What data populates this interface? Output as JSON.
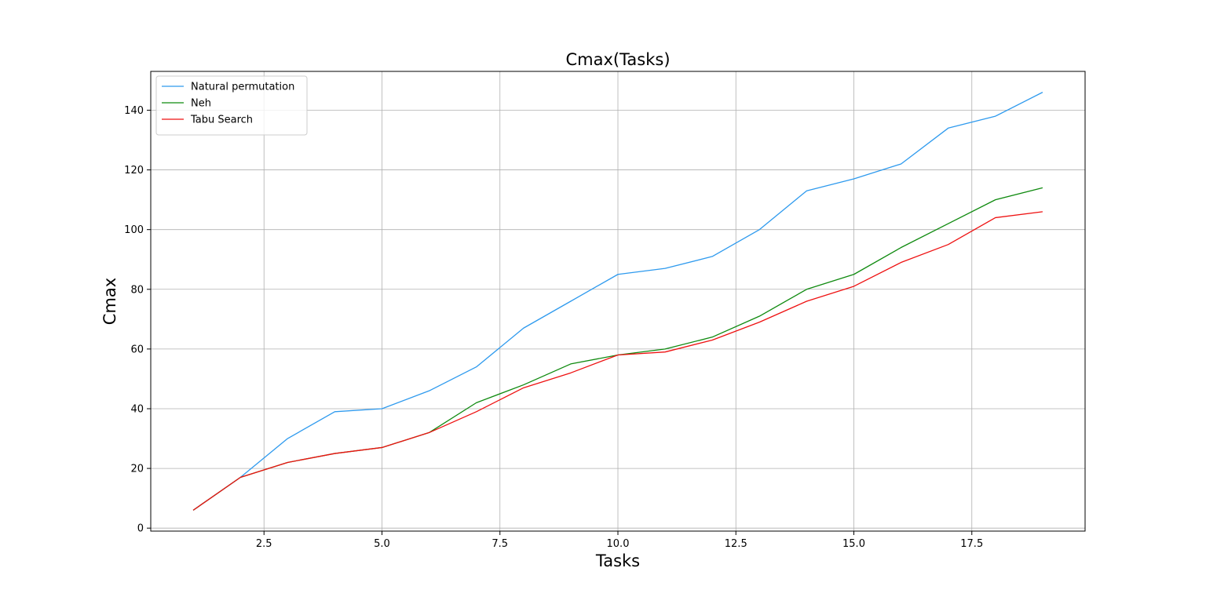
{
  "chart_data": {
    "type": "line",
    "title": "Cmax(Tasks)",
    "xlabel": "Tasks",
    "ylabel": "Cmax",
    "xlim": [
      0.1,
      19.9
    ],
    "ylim": [
      -1,
      153
    ],
    "xticks": [
      2.5,
      5.0,
      7.5,
      10.0,
      12.5,
      15.0,
      17.5
    ],
    "xtick_labels": [
      "2.5",
      "5.0",
      "7.5",
      "10.0",
      "12.5",
      "15.0",
      "17.5"
    ],
    "yticks": [
      0,
      20,
      40,
      60,
      80,
      100,
      120,
      140
    ],
    "ytick_labels": [
      "0",
      "20",
      "40",
      "60",
      "80",
      "100",
      "120",
      "140"
    ],
    "grid": true,
    "legend_position": "top-left",
    "x": [
      1,
      2,
      3,
      4,
      5,
      6,
      7,
      8,
      9,
      10,
      11,
      12,
      13,
      14,
      15,
      16,
      17,
      18,
      19
    ],
    "series": [
      {
        "name": "Natural permutation",
        "color": "#2e9aee",
        "values": [
          6,
          17,
          30,
          39,
          40,
          46,
          54,
          67,
          76,
          85,
          87,
          91,
          100,
          113,
          117,
          122,
          134,
          138,
          146
        ]
      },
      {
        "name": "Neh",
        "color": "#0f8a0f",
        "values": [
          6,
          17,
          22,
          25,
          27,
          32,
          42,
          48,
          55,
          58,
          60,
          64,
          71,
          80,
          85,
          94,
          102,
          110,
          114
        ]
      },
      {
        "name": "Tabu Search",
        "color": "#ee1111",
        "values": [
          6,
          17,
          22,
          25,
          27,
          32,
          39,
          47,
          52,
          58,
          59,
          63,
          69,
          76,
          81,
          89,
          95,
          104,
          106
        ]
      }
    ]
  }
}
